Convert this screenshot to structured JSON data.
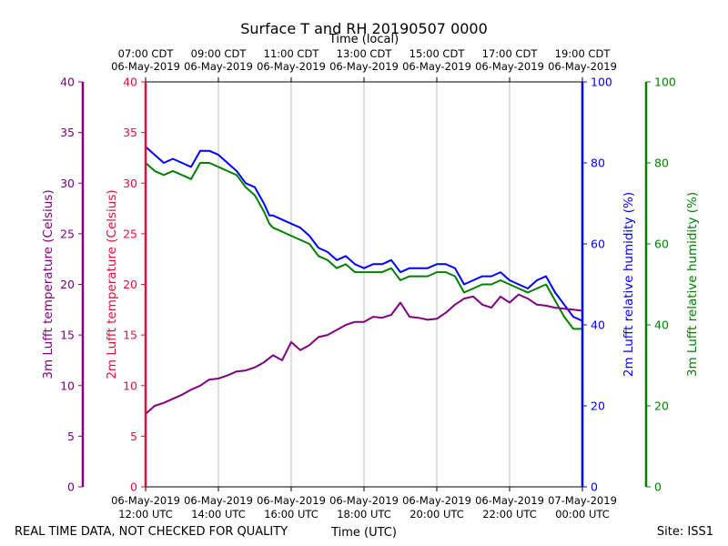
{
  "chart_data": {
    "type": "line",
    "title": "Surface T and RH 20190507 0000",
    "top_axis_label": "Time (local)",
    "xlabel": "Time (UTC)",
    "footer_left": "REAL TIME DATA, NOT CHECKED FOR QUALITY",
    "footer_right": "Site: ISS1",
    "x_unit": "hours UTC",
    "xlim": [
      12,
      24
    ],
    "grid": true,
    "x_ticks": [
      {
        "value": 12,
        "bottom_date": "06-May-2019",
        "bottom_time": "12:00 UTC",
        "top_time": "07:00 CDT",
        "top_date": "06-May-2019"
      },
      {
        "value": 14,
        "bottom_date": "06-May-2019",
        "bottom_time": "14:00 UTC",
        "top_time": "09:00 CDT",
        "top_date": "06-May-2019"
      },
      {
        "value": 16,
        "bottom_date": "06-May-2019",
        "bottom_time": "16:00 UTC",
        "top_time": "11:00 CDT",
        "top_date": "06-May-2019"
      },
      {
        "value": 18,
        "bottom_date": "06-May-2019",
        "bottom_time": "18:00 UTC",
        "top_time": "13:00 CDT",
        "top_date": "06-May-2019"
      },
      {
        "value": 20,
        "bottom_date": "06-May-2019",
        "bottom_time": "20:00 UTC",
        "top_time": "15:00 CDT",
        "top_date": "06-May-2019"
      },
      {
        "value": 22,
        "bottom_date": "06-May-2019",
        "bottom_time": "22:00 UTC",
        "top_time": "17:00 CDT",
        "top_date": "06-May-2019"
      },
      {
        "value": 24,
        "bottom_date": "07-May-2019",
        "bottom_time": "00:00 UTC",
        "top_time": "19:00 CDT",
        "top_date": "06-May-2019"
      }
    ],
    "axes": {
      "t3m": {
        "label": "3m Lufft temperature (Celsius)",
        "color": "#800080",
        "ylim": [
          0,
          40
        ],
        "ticks": [
          "0",
          "5",
          "10",
          "15",
          "20",
          "25",
          "30",
          "35",
          "40"
        ]
      },
      "t2m": {
        "label": "2m Lufft temperature (Celsius)",
        "color": "#dc143c",
        "ylim": [
          0,
          40
        ],
        "ticks": [
          "0",
          "5",
          "10",
          "15",
          "20",
          "25",
          "30",
          "35",
          "40"
        ]
      },
      "rh2m": {
        "label": "2m Lufft relative humidity (%)",
        "color": "#0000ff",
        "ylim": [
          0,
          100
        ],
        "ticks": [
          "0",
          "20",
          "40",
          "60",
          "80",
          "100"
        ]
      },
      "rh3m": {
        "label": "3m Lufft relative humidity (%)",
        "color": "#008000",
        "ylim": [
          0,
          100
        ],
        "ticks": [
          "0",
          "20",
          "40",
          "60",
          "80",
          "100"
        ]
      }
    },
    "series": [
      {
        "name": "2m relative humidity",
        "axis": "rh2m",
        "color": "#0000ff",
        "x": [
          12.0,
          12.25,
          12.5,
          12.75,
          13.0,
          13.25,
          13.5,
          13.75,
          14.0,
          14.25,
          14.5,
          14.75,
          15.0,
          15.25,
          15.4,
          15.5,
          15.75,
          16.0,
          16.25,
          16.5,
          16.75,
          17.0,
          17.25,
          17.5,
          17.75,
          18.0,
          18.25,
          18.5,
          18.75,
          19.0,
          19.25,
          19.5,
          19.75,
          20.0,
          20.25,
          20.5,
          20.75,
          21.0,
          21.25,
          21.5,
          21.75,
          22.0,
          22.25,
          22.5,
          22.75,
          23.0,
          23.25,
          23.5,
          23.75,
          24.0
        ],
        "values": [
          84,
          82,
          80,
          81,
          80,
          79,
          83,
          83,
          82,
          80,
          78,
          75,
          74,
          70,
          67,
          67,
          66,
          65,
          64,
          62,
          59,
          58,
          56,
          57,
          55,
          54,
          55,
          55,
          56,
          53,
          54,
          54,
          54,
          55,
          55,
          54,
          50,
          51,
          52,
          52,
          53,
          51,
          50,
          49,
          51,
          52,
          48,
          45,
          42,
          41
        ]
      },
      {
        "name": "3m relative humidity",
        "axis": "rh3m",
        "color": "#008000",
        "x": [
          12.0,
          12.25,
          12.5,
          12.75,
          13.0,
          13.25,
          13.5,
          13.75,
          14.0,
          14.25,
          14.5,
          14.75,
          15.0,
          15.25,
          15.4,
          15.5,
          15.75,
          16.0,
          16.25,
          16.5,
          16.75,
          17.0,
          17.25,
          17.5,
          17.75,
          18.0,
          18.25,
          18.5,
          18.75,
          19.0,
          19.25,
          19.5,
          19.75,
          20.0,
          20.25,
          20.5,
          20.75,
          21.0,
          21.25,
          21.5,
          21.75,
          22.0,
          22.25,
          22.5,
          22.75,
          23.0,
          23.25,
          23.5,
          23.75,
          24.0
        ],
        "values": [
          80,
          78,
          77,
          78,
          77,
          76,
          80,
          80,
          79,
          78,
          77,
          74,
          72,
          68,
          65,
          64,
          63,
          62,
          61,
          60,
          57,
          56,
          54,
          55,
          53,
          53,
          53,
          53,
          54,
          51,
          52,
          52,
          52,
          53,
          53,
          52,
          48,
          49,
          50,
          50,
          51,
          50,
          49,
          48,
          49,
          50,
          46,
          42,
          39,
          39
        ]
      },
      {
        "name": "3m temperature",
        "axis": "t3m",
        "color": "#800080",
        "x": [
          12.0,
          12.25,
          12.5,
          12.75,
          13.0,
          13.25,
          13.5,
          13.75,
          14.0,
          14.25,
          14.5,
          14.75,
          15.0,
          15.25,
          15.5,
          15.75,
          16.0,
          16.25,
          16.5,
          16.75,
          17.0,
          17.25,
          17.5,
          17.75,
          18.0,
          18.25,
          18.5,
          18.75,
          19.0,
          19.25,
          19.5,
          19.75,
          20.0,
          20.25,
          20.5,
          20.75,
          21.0,
          21.25,
          21.5,
          21.75,
          22.0,
          22.25,
          22.5,
          22.75,
          23.0,
          23.25,
          23.5,
          23.75,
          24.0
        ],
        "values": [
          7.2,
          8.0,
          8.3,
          8.7,
          9.1,
          9.6,
          10.0,
          10.6,
          10.7,
          11.0,
          11.4,
          11.5,
          11.8,
          12.3,
          13.0,
          12.5,
          14.3,
          13.5,
          14.0,
          14.8,
          15.0,
          15.5,
          16.0,
          16.3,
          16.3,
          16.8,
          16.7,
          17.0,
          18.2,
          16.8,
          16.7,
          16.5,
          16.6,
          17.2,
          18.0,
          18.6,
          18.8,
          18.0,
          17.7,
          18.8,
          18.2,
          19.0,
          18.6,
          18.0,
          17.9,
          17.7,
          17.6,
          17.5,
          17.4
        ]
      }
    ]
  }
}
